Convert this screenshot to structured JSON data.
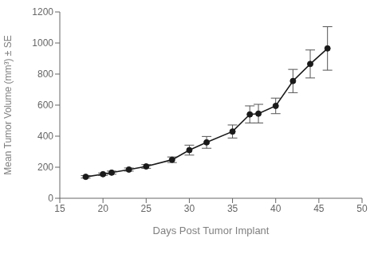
{
  "chart_data": {
    "type": "line",
    "x": [
      18,
      20,
      21,
      23,
      25,
      28,
      30,
      32,
      35,
      37,
      38,
      40,
      42,
      44,
      46
    ],
    "values": [
      138,
      155,
      165,
      185,
      205,
      248,
      310,
      360,
      430,
      540,
      545,
      595,
      755,
      865,
      965
    ],
    "yerr": [
      8,
      8,
      10,
      10,
      12,
      18,
      32,
      38,
      42,
      55,
      60,
      50,
      75,
      90,
      140
    ],
    "xlabel": "Days Post Tumor Implant",
    "ylabel": "Mean Tumor Volume (mm³) ± SE",
    "xlim": [
      15,
      50
    ],
    "ylim": [
      0,
      1200
    ],
    "xticks": [
      15,
      20,
      25,
      30,
      35,
      40,
      45,
      50
    ],
    "yticks": [
      0,
      200,
      400,
      600,
      800,
      1000,
      1200
    ],
    "color": "#1a1a1a",
    "marker": "o",
    "grid": false
  }
}
